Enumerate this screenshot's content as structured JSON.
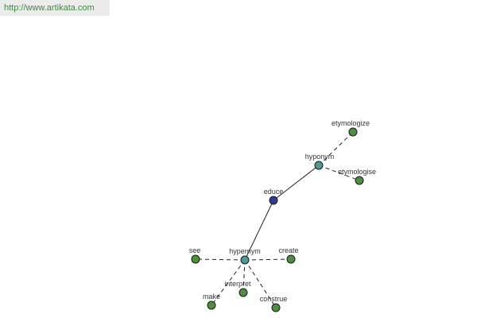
{
  "header": {
    "url": "http://www.artikata.com"
  },
  "nodes": [
    {
      "label": "educe"
    },
    {
      "label": "hyponym"
    },
    {
      "label": "etymologize"
    },
    {
      "label": "etymologise"
    },
    {
      "label": "hypernym"
    },
    {
      "label": "see"
    },
    {
      "label": "create"
    },
    {
      "label": "interpret"
    },
    {
      "label": "make"
    },
    {
      "label": "construe"
    }
  ]
}
